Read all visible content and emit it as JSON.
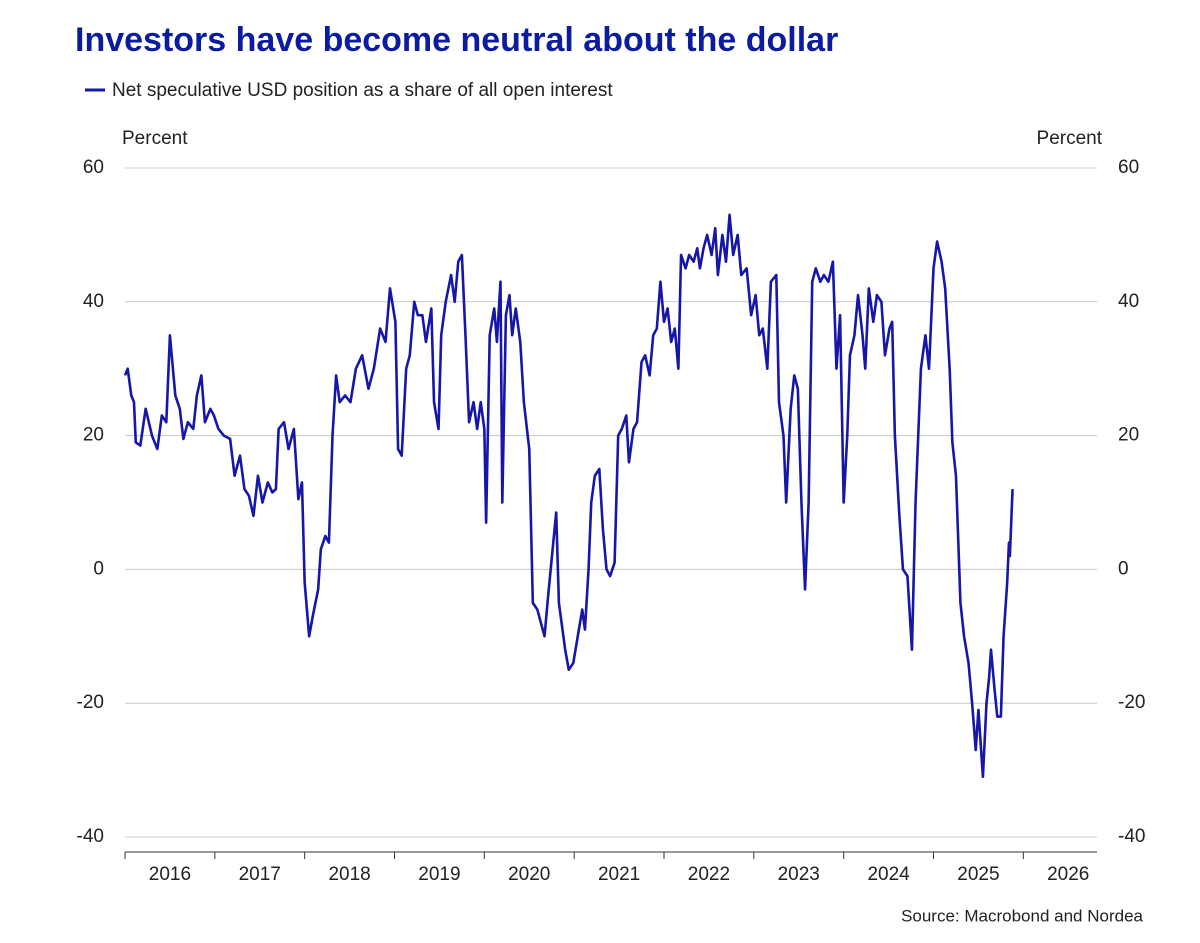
{
  "chart_data": {
    "type": "line",
    "title": "Investors have become neutral about the dollar",
    "y_label": "Percent",
    "y2_label": "Percent",
    "source": "Source: Macrobond and Nordea",
    "x": [
      2016.0,
      2016.03,
      2016.07,
      2016.1,
      2016.12,
      2016.17,
      2016.23,
      2016.3,
      2016.36,
      2016.41,
      2016.46,
      2016.5,
      2016.56,
      2016.61,
      2016.65,
      2016.7,
      2016.76,
      2016.8,
      2016.85,
      2016.89,
      2016.95,
      2016.99,
      2017.04,
      2017.1,
      2017.17,
      2017.22,
      2017.28,
      2017.33,
      2017.38,
      2017.43,
      2017.48,
      2017.53,
      2017.59,
      2017.64,
      2017.68,
      2017.71,
      2017.77,
      2017.82,
      2017.88,
      2017.93,
      2017.97,
      2018.0,
      2018.05,
      2018.09,
      2018.15,
      2018.18,
      2018.23,
      2018.27,
      2018.31,
      2018.35,
      2018.39,
      2018.45,
      2018.51,
      2018.57,
      2018.64,
      2018.71,
      2018.77,
      2018.84,
      2018.9,
      2018.95,
      2019.01,
      2019.04,
      2019.08,
      2019.13,
      2019.17,
      2019.22,
      2019.26,
      2019.31,
      2019.35,
      2019.41,
      2019.44,
      2019.49,
      2019.52,
      2019.57,
      2019.63,
      2019.67,
      2019.71,
      2019.75,
      2019.79,
      2019.83,
      2019.88,
      2019.92,
      2019.96,
      2020.0,
      2020.02,
      2020.06,
      2020.11,
      2020.14,
      2020.18,
      2020.2,
      2020.24,
      2020.28,
      2020.31,
      2020.35,
      2020.4,
      2020.44,
      2020.5,
      2020.54,
      2020.59,
      2020.63,
      2020.67,
      2020.71,
      2020.76,
      2020.8,
      2020.83,
      2020.87,
      2020.9,
      2020.94,
      2020.99,
      2021.04,
      2021.09,
      2021.12,
      2021.16,
      2021.19,
      2021.23,
      2021.28,
      2021.32,
      2021.36,
      2021.4,
      2021.45,
      2021.49,
      2021.53,
      2021.58,
      2021.61,
      2021.66,
      2021.7,
      2021.75,
      2021.79,
      2021.84,
      2021.88,
      2021.92,
      2021.96,
      2022.0,
      2022.04,
      2022.08,
      2022.12,
      2022.16,
      2022.19,
      2022.24,
      2022.28,
      2022.33,
      2022.37,
      2022.4,
      2022.44,
      2022.48,
      2022.53,
      2022.57,
      2022.6,
      2022.65,
      2022.69,
      2022.73,
      2022.77,
      2022.82,
      2022.86,
      2022.92,
      2022.97,
      2023.02,
      2023.06,
      2023.1,
      2023.15,
      2023.19,
      2023.25,
      2023.28,
      2023.33,
      2023.36,
      2023.41,
      2023.45,
      2023.49,
      2023.53,
      2023.57,
      2023.61,
      2023.65,
      2023.69,
      2023.74,
      2023.78,
      2023.83,
      2023.88,
      2023.92,
      2023.96,
      2024.0,
      2024.04,
      2024.07,
      2024.12,
      2024.16,
      2024.21,
      2024.24,
      2024.28,
      2024.33,
      2024.37,
      2024.42,
      2024.46,
      2024.51,
      2024.54,
      2024.57,
      2024.62,
      2024.66,
      2024.71,
      2024.76,
      2024.8,
      2024.83,
      2024.86,
      2024.91,
      2024.95,
      2025.0,
      2025.04,
      2025.09,
      2025.13,
      2025.18,
      2025.21,
      2025.25,
      2025.3,
      2025.34,
      2025.39,
      2025.43,
      2025.47,
      2025.5,
      2025.53,
      2025.55,
      2025.59,
      2025.62,
      2025.64,
      2025.68,
      2025.71,
      2025.75,
      2025.78,
      2025.82,
      2025.84,
      2025.85,
      2025.88
    ],
    "series": [
      {
        "name": "Net speculative USD position as a share of all open interest",
        "color": "#1616a8",
        "values": [
          29,
          30,
          26,
          25,
          19,
          18.5,
          24,
          20,
          18,
          23,
          22,
          35,
          26,
          24,
          19.5,
          22,
          21,
          26,
          29,
          22,
          24,
          23,
          21,
          20,
          19.5,
          14,
          17,
          12,
          11,
          8,
          14,
          10,
          13,
          11.5,
          12,
          21,
          22,
          18,
          21,
          10.5,
          13,
          -2,
          -10,
          -7,
          -3,
          3,
          5,
          4,
          20,
          29,
          25,
          26,
          25,
          30,
          32,
          27,
          30,
          36,
          34,
          42,
          37,
          18,
          17,
          30,
          32,
          40,
          38,
          38,
          34,
          39,
          25,
          21,
          35,
          40,
          44,
          40,
          46,
          47,
          35,
          22,
          25,
          21,
          25,
          21,
          7,
          35,
          39,
          34,
          43,
          10,
          38,
          41,
          35,
          39,
          34,
          25,
          18,
          -5,
          -6,
          -8,
          -10,
          -4,
          3,
          8.5,
          -5,
          -9,
          -12,
          -15,
          -14,
          -10,
          -6,
          -9,
          0,
          10,
          14,
          15,
          6,
          0,
          -1,
          1,
          20,
          21,
          23,
          16,
          21,
          22,
          31,
          32,
          29,
          35,
          36,
          43,
          37,
          39,
          34,
          36,
          30,
          47,
          45,
          47,
          46,
          48,
          45,
          48,
          50,
          47,
          51,
          44,
          50,
          46,
          53,
          47,
          50,
          44,
          45,
          38,
          41,
          35,
          36,
          30,
          43,
          44,
          25,
          20,
          10,
          24,
          29,
          27,
          10,
          -3,
          10,
          43,
          45,
          43,
          44,
          43,
          46,
          30,
          38,
          10,
          20,
          32,
          35,
          41,
          35,
          30,
          42,
          37,
          41,
          40,
          32,
          36,
          37,
          20,
          8,
          0,
          -1,
          -12,
          10,
          20,
          30,
          35,
          30,
          45,
          49,
          46,
          42,
          30,
          19,
          14,
          -5,
          -10,
          -14,
          -20,
          -27,
          -21,
          -27,
          -31,
          -20,
          -16,
          -12,
          -18,
          -22,
          -22,
          -10,
          -2,
          4,
          2,
          12
        ]
      }
    ],
    "xlim": [
      2016,
      2026.82
    ],
    "xticks": [
      2016,
      2017,
      2018,
      2019,
      2020,
      2021,
      2022,
      2023,
      2024,
      2025,
      2026
    ],
    "ylim": [
      -40,
      60
    ],
    "yticks": [
      -40,
      -20,
      0,
      20,
      40,
      60
    ],
    "grid": true
  }
}
